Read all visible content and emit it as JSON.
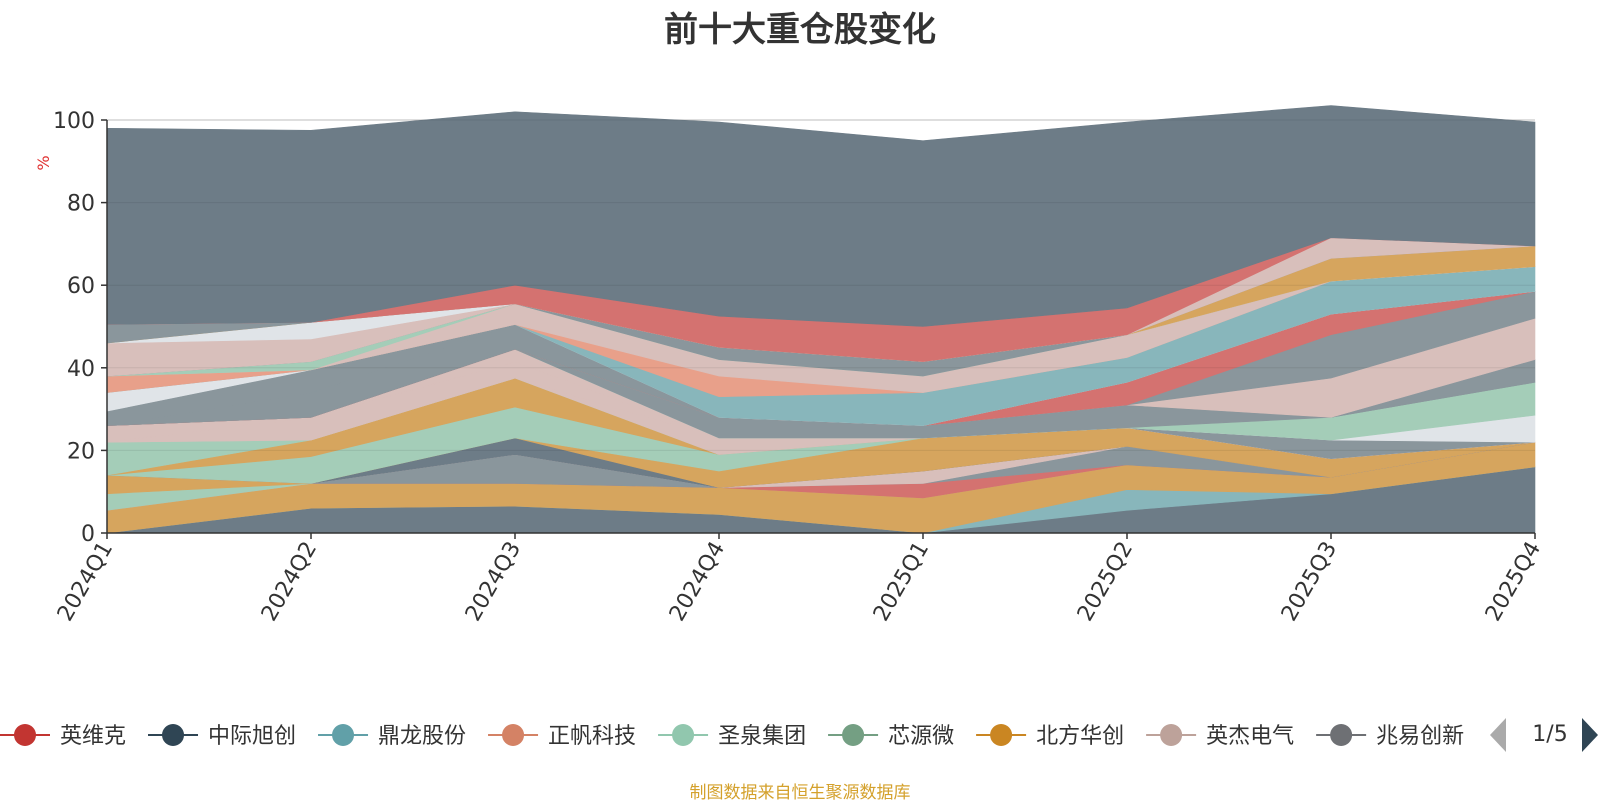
{
  "title": "前十大重仓股变化",
  "source_note": "制图数据来自恒生聚源数据库",
  "legend_pager": {
    "text": "1/5"
  },
  "legend": [
    {
      "name": "英维克",
      "color": "#c23531"
    },
    {
      "name": "中际旭创",
      "color": "#2f4554"
    },
    {
      "name": "鼎龙股份",
      "color": "#61a0a8"
    },
    {
      "name": "正帆科技",
      "color": "#d48265"
    },
    {
      "name": "圣泉集团",
      "color": "#91c7ae"
    },
    {
      "name": "芯源微",
      "color": "#749f83"
    },
    {
      "name": "北方华创",
      "color": "#ca8622"
    },
    {
      "name": "英杰电气",
      "color": "#bda29a"
    },
    {
      "name": "兆易创新",
      "color": "#6e7074"
    }
  ],
  "chart_data": {
    "type": "area",
    "stacked": true,
    "ylabel": "%",
    "ylim": [
      0,
      100
    ],
    "yticks": [
      0,
      20,
      40,
      60,
      80,
      100
    ],
    "categories": [
      "2024Q1",
      "2024Q2",
      "2024Q3",
      "2024Q4",
      "2025Q1",
      "2025Q2",
      "2025Q3",
      "2025Q4"
    ],
    "series": [
      {
        "color": "#6d7c87",
        "values": [
          0,
          6,
          6.5,
          4.5,
          0,
          5.5,
          9.5,
          16
        ]
      },
      {
        "color": "#88b6bb",
        "values": [
          0,
          0,
          0,
          0,
          0,
          5,
          0,
          0
        ]
      },
      {
        "color": "#d6a55e",
        "values": [
          5.5,
          6,
          5.5,
          6.5,
          8.5,
          6,
          4,
          6
        ]
      },
      {
        "color": "#d6a55e",
        "values": [
          0,
          0,
          0,
          0,
          0,
          0,
          0,
          0
        ]
      },
      {
        "color": "#d6a0a0",
        "values": [
          0,
          0,
          0,
          0,
          0,
          0,
          0,
          0
        ]
      },
      {
        "color": "#a4cdb8",
        "values": [
          4,
          0,
          0,
          0,
          0,
          0,
          0,
          0
        ]
      },
      {
        "color": "#d6a55e",
        "values": [
          4.5,
          0,
          0,
          0,
          0,
          0,
          0,
          0
        ]
      },
      {
        "color": "#d6a55e",
        "values": [
          0,
          0,
          0,
          0,
          0,
          0,
          0,
          0
        ]
      },
      {
        "color": "#d47270",
        "values": [
          0,
          0,
          0,
          0,
          3.5,
          0,
          0,
          0
        ]
      },
      {
        "color": "#8a969c",
        "values": [
          0,
          0,
          7,
          0,
          0,
          4.5,
          0,
          0
        ]
      },
      {
        "color": "#d8bfbb",
        "values": [
          0,
          0,
          0,
          0,
          3,
          0,
          0,
          0
        ]
      },
      {
        "color": "#6d7c87",
        "values": [
          0,
          0,
          4,
          0,
          0,
          0,
          0,
          0
        ]
      },
      {
        "color": "#d6a55e",
        "values": [
          0,
          0,
          0,
          4,
          8,
          4.5,
          4.5,
          0
        ]
      },
      {
        "color": "#a4cdb8",
        "values": [
          0,
          6.5,
          7.5,
          4,
          0,
          0,
          0,
          0
        ]
      },
      {
        "color": "#d6a55e",
        "values": [
          0,
          4,
          7,
          0,
          0,
          0,
          0,
          0
        ]
      },
      {
        "color": "#a4cdb8",
        "values": [
          8,
          0,
          0,
          0,
          0,
          0,
          0,
          0
        ]
      },
      {
        "color": "#d8bfbb",
        "values": [
          0,
          0,
          0,
          4,
          0,
          0,
          0,
          0
        ]
      },
      {
        "color": "#d8bfbb",
        "values": [
          0,
          5.5,
          4,
          0,
          0,
          0,
          0,
          0
        ]
      },
      {
        "color": "#d8bfbb",
        "values": [
          4,
          0,
          0,
          0,
          0,
          0,
          0,
          0
        ]
      },
      {
        "color": "#d8bfbb",
        "values": [
          0,
          0,
          3,
          0,
          0,
          0,
          0,
          0
        ]
      },
      {
        "color": "#8a969c",
        "values": [
          0,
          0,
          0,
          0,
          0,
          0,
          4.5,
          0
        ]
      },
      {
        "color": "#e0e4e8",
        "values": [
          0,
          0,
          0,
          0,
          0,
          0,
          0,
          6.5
        ]
      },
      {
        "color": "#a4cdb8",
        "values": [
          0,
          0,
          0,
          0,
          0,
          0,
          5.5,
          8
        ]
      },
      {
        "color": "#8a969c",
        "values": [
          0,
          0,
          0,
          5,
          3,
          5.5,
          0,
          0
        ]
      },
      {
        "color": "#8a969c",
        "values": [
          0,
          0,
          0,
          0,
          0,
          0,
          0,
          5.5
        ]
      },
      {
        "color": "#d8bfbb",
        "values": [
          0,
          0,
          0,
          0,
          0,
          0,
          9.5,
          10
        ]
      },
      {
        "color": "#8a969c",
        "values": [
          0,
          0,
          0,
          0,
          0,
          0,
          10.5,
          6.5
        ]
      },
      {
        "color": "#d47270",
        "values": [
          0,
          0,
          0,
          0,
          0,
          5.5,
          5,
          0
        ]
      },
      {
        "color": "#8a969c",
        "values": [
          0,
          6,
          6,
          0,
          0,
          0,
          0,
          0
        ]
      },
      {
        "color": "#8a969c",
        "values": [
          3.5,
          5.5,
          0,
          0,
          0,
          0,
          0,
          0
        ]
      },
      {
        "color": "#e0e4e8",
        "values": [
          4.5,
          0,
          0,
          0,
          0,
          0,
          0,
          0
        ]
      },
      {
        "color": "#88b6bb",
        "values": [
          0,
          0,
          0,
          5,
          8,
          6,
          8,
          6
        ]
      },
      {
        "color": "#e8a08a",
        "values": [
          4,
          0,
          0,
          5,
          0,
          0,
          0,
          0
        ]
      },
      {
        "color": "#d8bfbb",
        "values": [
          0,
          0,
          5,
          4,
          4,
          5.5,
          0,
          0
        ]
      },
      {
        "color": "#a4cdb8",
        "values": [
          0,
          2,
          0,
          0,
          0,
          0,
          0,
          0
        ]
      },
      {
        "color": "#8a969c",
        "values": [
          0,
          0,
          0,
          3,
          3.5,
          0,
          0,
          0
        ]
      },
      {
        "color": "#d8bfbb",
        "values": [
          8,
          5.5,
          0,
          0,
          0,
          0,
          0,
          0
        ]
      },
      {
        "color": "#e0e4e8",
        "values": [
          0,
          4,
          0,
          0,
          0,
          0,
          0,
          0
        ]
      },
      {
        "color": "#d6a55e",
        "values": [
          0,
          0,
          0,
          0,
          0,
          0,
          5.5,
          5
        ]
      },
      {
        "color": "#8a969c",
        "values": [
          4.5,
          0,
          0,
          0,
          0,
          0,
          0,
          0
        ]
      },
      {
        "color": "#d8bfbb",
        "values": [
          0,
          0,
          0,
          0,
          0,
          0,
          5,
          0
        ]
      },
      {
        "color": "#d47270",
        "values": [
          0,
          0,
          4.5,
          7.5,
          8.5,
          6.5,
          0,
          0
        ]
      },
      {
        "color": "#6d7c87",
        "values": [
          47.5,
          46.5,
          42,
          47,
          45,
          45,
          32,
          30
        ]
      }
    ]
  }
}
